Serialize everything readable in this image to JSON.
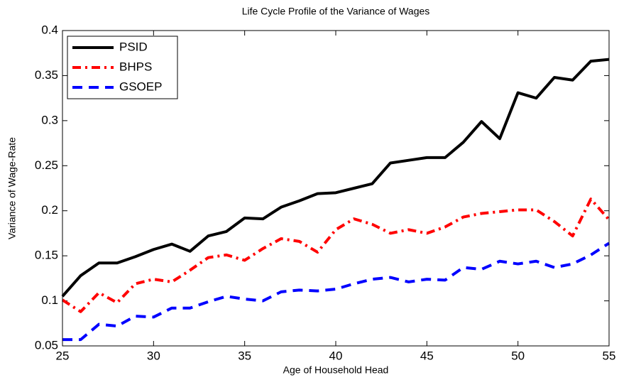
{
  "chart_data": {
    "type": "line",
    "title": "Life Cycle Profile of the Variance of Wages",
    "x_label": "Age of Household Head",
    "y_label": "Variance of Wage-Rate",
    "x": [
      25,
      26,
      27,
      28,
      29,
      30,
      31,
      32,
      33,
      34,
      35,
      36,
      37,
      38,
      39,
      40,
      41,
      42,
      43,
      44,
      45,
      46,
      47,
      48,
      49,
      50,
      51,
      52,
      53,
      54,
      55
    ],
    "series": [
      {
        "name": "PSID",
        "color": "#000000",
        "linestyle": "solid",
        "values": [
          0.105,
          0.128,
          0.142,
          0.142,
          0.149,
          0.157,
          0.163,
          0.155,
          0.172,
          0.177,
          0.192,
          0.191,
          0.204,
          0.211,
          0.219,
          0.22,
          0.225,
          0.23,
          0.253,
          0.256,
          0.259,
          0.259,
          0.276,
          0.299,
          0.28,
          0.331,
          0.325,
          0.348,
          0.345,
          0.366,
          0.368
        ]
      },
      {
        "name": "BHPS",
        "color": "#ff0000",
        "linestyle": "dashdot",
        "values": [
          0.101,
          0.088,
          0.109,
          0.098,
          0.119,
          0.124,
          0.121,
          0.134,
          0.148,
          0.151,
          0.145,
          0.158,
          0.169,
          0.166,
          0.154,
          0.179,
          0.191,
          0.185,
          0.175,
          0.179,
          0.175,
          0.182,
          0.193,
          0.197,
          0.199,
          0.201,
          0.201,
          0.188,
          0.172,
          0.213,
          0.19
        ]
      },
      {
        "name": "GSOEP",
        "color": "#0000ff",
        "linestyle": "dashed",
        "values": [
          0.057,
          0.057,
          0.074,
          0.072,
          0.083,
          0.082,
          0.092,
          0.092,
          0.099,
          0.105,
          0.102,
          0.1,
          0.11,
          0.112,
          0.111,
          0.113,
          0.119,
          0.124,
          0.126,
          0.121,
          0.124,
          0.123,
          0.137,
          0.135,
          0.144,
          0.141,
          0.144,
          0.137,
          0.141,
          0.151,
          0.164
        ]
      }
    ],
    "xlim": [
      25,
      55
    ],
    "xticks": [
      25,
      30,
      35,
      40,
      45,
      50,
      55
    ],
    "ylim": [
      0.05,
      0.4
    ],
    "yticks": [
      0.05,
      0.1,
      0.15,
      0.2,
      0.25,
      0.3,
      0.35,
      0.4
    ],
    "grid": false,
    "legend_position": "upper-left"
  }
}
